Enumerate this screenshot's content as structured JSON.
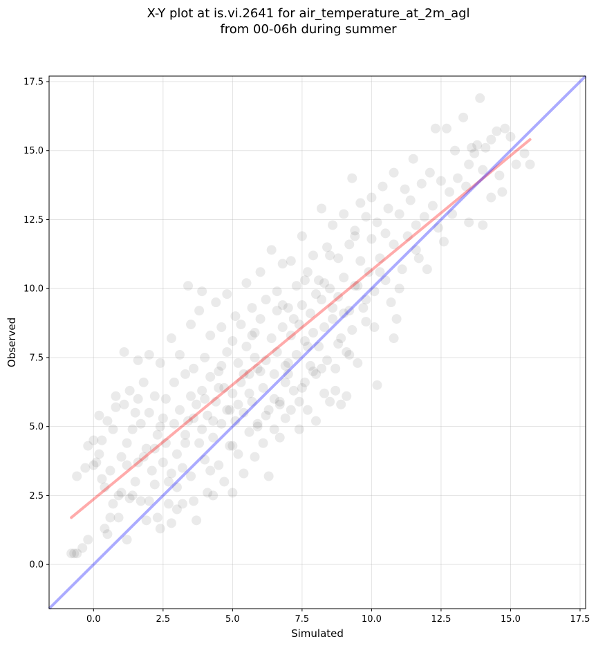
{
  "chart_data": {
    "type": "scatter",
    "title": "X-Y plot at is.vi.2641 for air_temperature_at_2m_agl",
    "subtitle": "from 00-06h during summer",
    "xlabel": "Simulated",
    "ylabel": "Observed",
    "xlim": [
      -1.6,
      17.7
    ],
    "ylim": [
      -1.6,
      17.7
    ],
    "xticks": [
      0.0,
      2.5,
      5.0,
      7.5,
      10.0,
      12.5,
      15.0,
      17.5
    ],
    "yticks": [
      0.0,
      2.5,
      5.0,
      7.5,
      10.0,
      12.5,
      15.0,
      17.5
    ],
    "tick_labels": [
      "0.0",
      "2.5",
      "5.0",
      "7.5",
      "10.0",
      "12.5",
      "15.0",
      "17.5"
    ],
    "grid": true,
    "point_color": "#555555",
    "point_alpha": 0.12,
    "regression_line": {
      "x": [
        -0.8,
        15.7
      ],
      "y": [
        1.7,
        15.4
      ],
      "color": "#ff0000"
    },
    "identity_line": {
      "x": [
        -1.6,
        17.7
      ],
      "y": [
        -1.6,
        17.7
      ],
      "color": "#0000ff"
    },
    "points": [
      [
        -0.8,
        0.4
      ],
      [
        -0.7,
        0.4
      ],
      [
        -0.6,
        0.4
      ],
      [
        -0.4,
        0.6
      ],
      [
        -0.2,
        0.9
      ],
      [
        -0.6,
        3.2
      ],
      [
        -0.3,
        3.5
      ],
      [
        -0.2,
        4.3
      ],
      [
        0.0,
        4.5
      ],
      [
        0.0,
        3.6
      ],
      [
        0.1,
        3.7
      ],
      [
        0.2,
        4.0
      ],
      [
        0.2,
        5.4
      ],
      [
        0.3,
        3.1
      ],
      [
        0.3,
        4.5
      ],
      [
        0.4,
        2.8
      ],
      [
        0.4,
        1.3
      ],
      [
        0.5,
        1.1
      ],
      [
        0.5,
        5.2
      ],
      [
        0.6,
        1.7
      ],
      [
        0.6,
        3.4
      ],
      [
        0.7,
        4.9
      ],
      [
        0.8,
        6.1
      ],
      [
        0.8,
        5.7
      ],
      [
        0.9,
        2.5
      ],
      [
        0.9,
        1.7
      ],
      [
        1.0,
        2.6
      ],
      [
        1.0,
        3.9
      ],
      [
        1.1,
        5.8
      ],
      [
        1.1,
        7.7
      ],
      [
        1.2,
        3.6
      ],
      [
        1.2,
        0.9
      ],
      [
        1.3,
        2.4
      ],
      [
        1.3,
        6.3
      ],
      [
        1.4,
        4.9
      ],
      [
        1.4,
        2.5
      ],
      [
        1.5,
        3.0
      ],
      [
        1.5,
        5.5
      ],
      [
        1.6,
        7.4
      ],
      [
        1.6,
        3.7
      ],
      [
        1.7,
        2.3
      ],
      [
        1.7,
        5.1
      ],
      [
        1.8,
        6.6
      ],
      [
        1.8,
        3.9
      ],
      [
        1.9,
        4.2
      ],
      [
        1.9,
        1.6
      ],
      [
        2.0,
        7.6
      ],
      [
        2.0,
        5.5
      ],
      [
        2.1,
        3.4
      ],
      [
        2.2,
        2.9
      ],
      [
        2.2,
        6.1
      ],
      [
        2.3,
        4.7
      ],
      [
        2.3,
        1.7
      ],
      [
        2.4,
        7.3
      ],
      [
        2.4,
        1.3
      ],
      [
        2.5,
        5.3
      ],
      [
        2.5,
        3.7
      ],
      [
        2.6,
        4.4
      ],
      [
        2.6,
        6.0
      ],
      [
        2.7,
        2.2
      ],
      [
        2.8,
        8.2
      ],
      [
        2.8,
        3.3
      ],
      [
        2.8,
        1.5
      ],
      [
        2.9,
        5.1
      ],
      [
        2.9,
        6.6
      ],
      [
        3.0,
        4.0
      ],
      [
        3.0,
        2.8
      ],
      [
        3.1,
        7.6
      ],
      [
        3.1,
        5.6
      ],
      [
        3.2,
        3.5
      ],
      [
        3.2,
        2.2
      ],
      [
        3.3,
        6.9
      ],
      [
        3.3,
        4.7
      ],
      [
        3.4,
        10.1
      ],
      [
        3.4,
        5.2
      ],
      [
        3.5,
        8.7
      ],
      [
        3.5,
        3.2
      ],
      [
        3.6,
        2.3
      ],
      [
        3.6,
        7.1
      ],
      [
        3.7,
        5.8
      ],
      [
        3.7,
        1.6
      ],
      [
        3.8,
        9.2
      ],
      [
        3.8,
        4.4
      ],
      [
        3.9,
        9.9
      ],
      [
        3.9,
        6.3
      ],
      [
        4.0,
        7.5
      ],
      [
        4.0,
        3.8
      ],
      [
        4.1,
        5.4
      ],
      [
        4.1,
        2.6
      ],
      [
        4.2,
        8.3
      ],
      [
        4.2,
        6.8
      ],
      [
        4.3,
        4.6
      ],
      [
        4.3,
        2.5
      ],
      [
        4.4,
        9.5
      ],
      [
        4.4,
        5.9
      ],
      [
        4.5,
        7.0
      ],
      [
        4.5,
        3.6
      ],
      [
        4.6,
        8.6
      ],
      [
        4.6,
        5.1
      ],
      [
        4.7,
        6.4
      ],
      [
        4.7,
        3.0
      ],
      [
        4.8,
        9.8
      ],
      [
        4.8,
        7.7
      ],
      [
        4.9,
        5.6
      ],
      [
        4.9,
        4.3
      ],
      [
        5.0,
        8.1
      ],
      [
        5.0,
        6.2
      ],
      [
        5.0,
        2.6
      ],
      [
        5.1,
        9.0
      ],
      [
        5.1,
        5.2
      ],
      [
        5.2,
        7.3
      ],
      [
        5.2,
        4.0
      ],
      [
        5.3,
        8.7
      ],
      [
        5.3,
        6.6
      ],
      [
        5.4,
        5.5
      ],
      [
        5.4,
        3.3
      ],
      [
        5.5,
        10.2
      ],
      [
        5.5,
        7.9
      ],
      [
        5.6,
        6.9
      ],
      [
        5.6,
        4.8
      ],
      [
        5.7,
        9.3
      ],
      [
        5.7,
        5.9
      ],
      [
        5.8,
        8.4
      ],
      [
        5.8,
        3.9
      ],
      [
        5.9,
        7.1
      ],
      [
        5.9,
        5.1
      ],
      [
        6.0,
        10.6
      ],
      [
        6.0,
        8.9
      ],
      [
        6.1,
        6.4
      ],
      [
        6.1,
        4.4
      ],
      [
        6.2,
        9.6
      ],
      [
        6.2,
        7.4
      ],
      [
        6.3,
        5.6
      ],
      [
        6.3,
        3.2
      ],
      [
        6.4,
        11.4
      ],
      [
        6.4,
        8.2
      ],
      [
        6.5,
        6.9
      ],
      [
        6.5,
        4.9
      ],
      [
        6.6,
        9.9
      ],
      [
        6.6,
        7.7
      ],
      [
        6.7,
        5.9
      ],
      [
        6.7,
        4.6
      ],
      [
        6.8,
        10.9
      ],
      [
        6.8,
        8.6
      ],
      [
        6.9,
        6.6
      ],
      [
        6.9,
        5.3
      ],
      [
        7.0,
        9.3
      ],
      [
        7.0,
        7.3
      ],
      [
        7.1,
        11.0
      ],
      [
        7.1,
        5.6
      ],
      [
        7.2,
        8.9
      ],
      [
        7.2,
        6.3
      ],
      [
        7.3,
        10.1
      ],
      [
        7.3,
        7.6
      ],
      [
        7.4,
        5.9
      ],
      [
        7.4,
        4.9
      ],
      [
        7.5,
        11.9
      ],
      [
        7.5,
        9.4
      ],
      [
        7.6,
        8.1
      ],
      [
        7.6,
        6.6
      ],
      [
        7.7,
        10.6
      ],
      [
        7.7,
        5.6
      ],
      [
        7.8,
        9.1
      ],
      [
        7.8,
        7.2
      ],
      [
        7.9,
        11.2
      ],
      [
        7.9,
        8.4
      ],
      [
        8.0,
        6.9
      ],
      [
        8.0,
        5.2
      ],
      [
        8.1,
        10.3
      ],
      [
        8.1,
        7.9
      ],
      [
        8.2,
        12.9
      ],
      [
        8.2,
        9.6
      ],
      [
        8.3,
        8.6
      ],
      [
        8.3,
        6.2
      ],
      [
        8.4,
        11.5
      ],
      [
        8.4,
        7.4
      ],
      [
        8.5,
        10.0
      ],
      [
        8.5,
        5.9
      ],
      [
        8.6,
        12.3
      ],
      [
        8.6,
        8.9
      ],
      [
        8.7,
        7.1
      ],
      [
        8.7,
        6.3
      ],
      [
        8.8,
        11.1
      ],
      [
        8.8,
        9.7
      ],
      [
        8.9,
        8.2
      ],
      [
        8.9,
        5.8
      ],
      [
        9.0,
        12.7
      ],
      [
        9.0,
        10.4
      ],
      [
        9.1,
        7.7
      ],
      [
        9.1,
        6.1
      ],
      [
        9.2,
        11.6
      ],
      [
        9.2,
        9.2
      ],
      [
        9.3,
        8.5
      ],
      [
        9.3,
        14.0
      ],
      [
        9.4,
        12.1
      ],
      [
        9.4,
        10.1
      ],
      [
        9.5,
        7.3
      ],
      [
        9.6,
        13.1
      ],
      [
        9.6,
        11.0
      ],
      [
        9.7,
        9.3
      ],
      [
        9.8,
        12.6
      ],
      [
        9.8,
        8.8
      ],
      [
        9.9,
        10.6
      ],
      [
        10.0,
        13.3
      ],
      [
        10.0,
        11.8
      ],
      [
        10.1,
        9.9
      ],
      [
        10.2,
        12.4
      ],
      [
        10.2,
        6.5
      ],
      [
        10.3,
        11.1
      ],
      [
        10.4,
        13.7
      ],
      [
        10.5,
        10.3
      ],
      [
        10.6,
        12.9
      ],
      [
        10.7,
        9.5
      ],
      [
        10.8,
        14.2
      ],
      [
        10.8,
        11.6
      ],
      [
        10.9,
        8.9
      ],
      [
        11.0,
        12.7
      ],
      [
        11.1,
        10.7
      ],
      [
        11.2,
        13.6
      ],
      [
        11.3,
        11.9
      ],
      [
        11.4,
        13.2
      ],
      [
        11.5,
        14.7
      ],
      [
        11.6,
        12.3
      ],
      [
        11.7,
        11.1
      ],
      [
        11.8,
        13.8
      ],
      [
        11.9,
        12.6
      ],
      [
        12.0,
        10.7
      ],
      [
        12.1,
        14.2
      ],
      [
        12.2,
        13.0
      ],
      [
        12.3,
        15.8
      ],
      [
        12.4,
        12.2
      ],
      [
        12.5,
        13.9
      ],
      [
        12.6,
        11.7
      ],
      [
        12.7,
        15.8
      ],
      [
        12.8,
        13.5
      ],
      [
        12.9,
        12.7
      ],
      [
        13.0,
        15.0
      ],
      [
        13.1,
        14.0
      ],
      [
        13.3,
        16.2
      ],
      [
        13.4,
        13.7
      ],
      [
        13.5,
        14.5
      ],
      [
        13.5,
        12.4
      ],
      [
        13.6,
        15.1
      ],
      [
        13.7,
        14.9
      ],
      [
        13.8,
        15.2
      ],
      [
        13.9,
        16.9
      ],
      [
        14.0,
        14.3
      ],
      [
        14.0,
        12.3
      ],
      [
        14.1,
        15.1
      ],
      [
        14.3,
        15.4
      ],
      [
        14.3,
        13.3
      ],
      [
        14.5,
        15.7
      ],
      [
        14.6,
        14.1
      ],
      [
        14.7,
        13.5
      ],
      [
        14.8,
        15.8
      ],
      [
        15.0,
        15.5
      ],
      [
        15.2,
        14.5
      ],
      [
        15.5,
        14.9
      ],
      [
        15.7,
        14.5
      ],
      [
        3.0,
        2.0
      ],
      [
        2.2,
        4.2
      ],
      [
        4.5,
        6.4
      ],
      [
        5.8,
        7.5
      ],
      [
        6.6,
        9.2
      ],
      [
        7.4,
        8.7
      ],
      [
        7.0,
        6.9
      ],
      [
        8.0,
        9.8
      ],
      [
        6.2,
        5.4
      ],
      [
        5.6,
        6.2
      ],
      [
        4.8,
        5.6
      ],
      [
        3.9,
        4.9
      ],
      [
        3.3,
        4.4
      ],
      [
        4.3,
        5.2
      ],
      [
        5.2,
        5.8
      ],
      [
        6.9,
        7.2
      ],
      [
        7.7,
        7.9
      ],
      [
        8.6,
        9.3
      ],
      [
        9.5,
        10.1
      ],
      [
        10.3,
        10.6
      ],
      [
        8.3,
        10.2
      ],
      [
        7.1,
        8.3
      ],
      [
        6.0,
        7.0
      ],
      [
        9.0,
        9.1
      ],
      [
        5.4,
        6.9
      ],
      [
        4.0,
        6.0
      ],
      [
        3.6,
        5.3
      ],
      [
        6.5,
        6.0
      ],
      [
        7.9,
        7.0
      ],
      [
        8.8,
        8.0
      ],
      [
        9.8,
        9.6
      ],
      [
        2.7,
        3.0
      ],
      [
        2.0,
        2.3
      ],
      [
        1.2,
        4.4
      ],
      [
        0.7,
        2.2
      ],
      [
        1.6,
        6.0
      ],
      [
        2.4,
        5.0
      ],
      [
        3.5,
        6.1
      ],
      [
        4.6,
        7.2
      ],
      [
        5.7,
        8.3
      ],
      [
        6.8,
        9.4
      ],
      [
        7.6,
        10.3
      ],
      [
        8.5,
        11.2
      ],
      [
        9.4,
        11.9
      ],
      [
        10.5,
        12.0
      ],
      [
        11.0,
        10.0
      ],
      [
        11.6,
        11.4
      ],
      [
        4.2,
        3.4
      ],
      [
        5.0,
        4.3
      ],
      [
        5.9,
        5.0
      ],
      [
        6.7,
        5.8
      ],
      [
        7.5,
        6.4
      ],
      [
        8.2,
        7.1
      ],
      [
        9.2,
        7.6
      ],
      [
        10.1,
        8.6
      ],
      [
        10.8,
        8.2
      ]
    ]
  }
}
